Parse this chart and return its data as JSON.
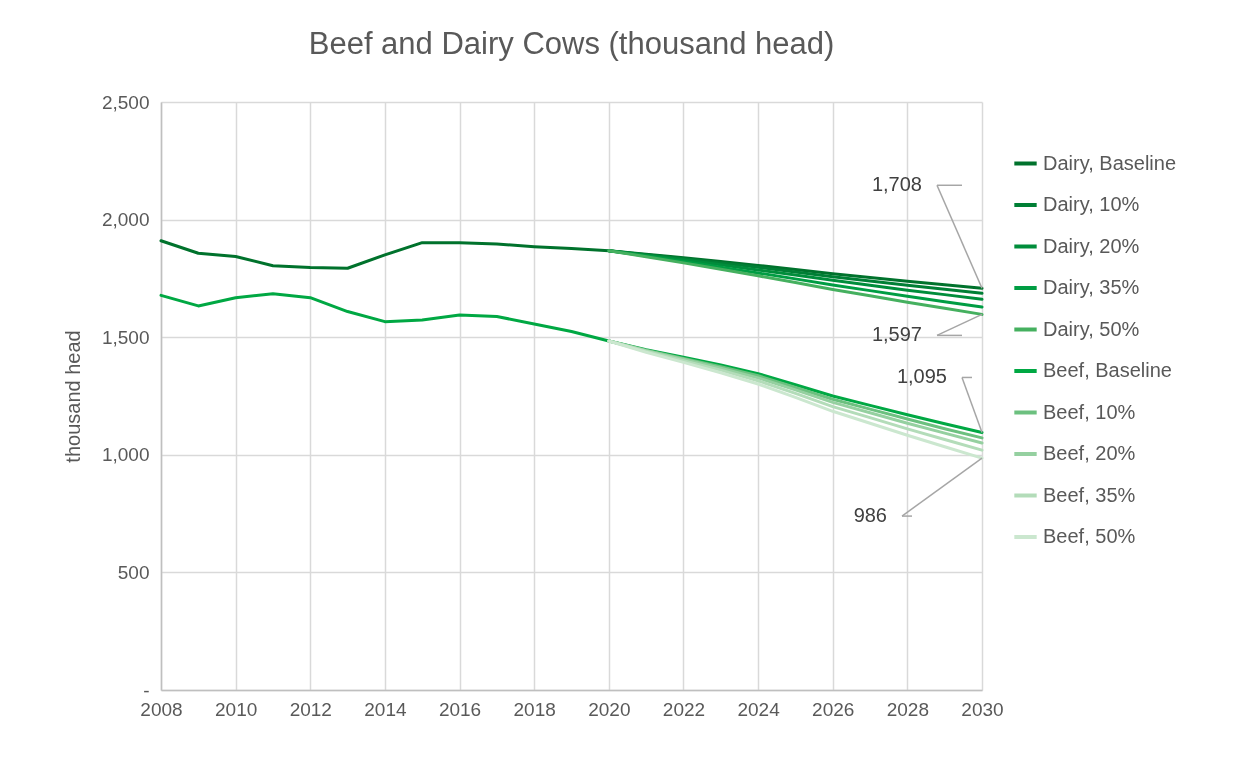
{
  "chart_data": {
    "type": "line",
    "title": "Beef and Dairy Cows (thousand head)",
    "ylabel": "thousand head",
    "x": [
      2008,
      2009,
      2010,
      2011,
      2012,
      2013,
      2014,
      2015,
      2016,
      2017,
      2018,
      2019,
      2020,
      2021,
      2022,
      2023,
      2024,
      2025,
      2026,
      2027,
      2028,
      2029,
      2030
    ],
    "xlim": [
      2008,
      2030
    ],
    "xticks": [
      2008,
      2010,
      2012,
      2014,
      2016,
      2018,
      2020,
      2022,
      2024,
      2026,
      2028,
      2030
    ],
    "ylim": [
      0,
      2500
    ],
    "yticks": [
      {
        "value": 0,
        "label": "-"
      },
      500,
      {
        "value": 1000,
        "label": "1,000"
      },
      {
        "value": 1500,
        "label": "1,500"
      },
      {
        "value": 2000,
        "label": "2,000"
      },
      {
        "value": 2500,
        "label": "2,500"
      }
    ],
    "grid": true,
    "legend": "right",
    "line_style": "solid",
    "series": [
      {
        "name": "Dairy, Baseline",
        "color": "#00722c",
        "values": [
          1910,
          1857,
          1843,
          1804,
          1796,
          1793,
          1850,
          1902,
          1902,
          1896,
          1885,
          1877,
          1868,
          1853,
          1838,
          1822,
          1805,
          1788,
          1770,
          1754,
          1738,
          1723,
          1708
        ],
        "value_labels": [
          null,
          null,
          null,
          null,
          null,
          null,
          null,
          null,
          null,
          null,
          null,
          null,
          null,
          null,
          null,
          null,
          null,
          null,
          null,
          null,
          null,
          null,
          "1,708"
        ]
      },
      {
        "name": "Dairy, 10%",
        "color": "#007f35",
        "values": [
          null,
          null,
          null,
          null,
          null,
          null,
          null,
          null,
          null,
          null,
          null,
          null,
          1868,
          1851,
          1834,
          1816,
          1797,
          1777,
          1757,
          1739,
          1721,
          1704,
          1687
        ]
      },
      {
        "name": "Dairy, 20%",
        "color": "#008d3b",
        "values": [
          null,
          null,
          null,
          null,
          null,
          null,
          null,
          null,
          null,
          null,
          null,
          null,
          1868,
          1848,
          1829,
          1808,
          1786,
          1764,
          1742,
          1721,
          1700,
          1681,
          1661
        ]
      },
      {
        "name": "Dairy, 35%",
        "color": "#009d43",
        "values": [
          null,
          null,
          null,
          null,
          null,
          null,
          null,
          null,
          null,
          null,
          null,
          null,
          1868,
          1845,
          1822,
          1798,
          1773,
          1748,
          1722,
          1698,
          1674,
          1651,
          1628
        ]
      },
      {
        "name": "Dairy, 50%",
        "color": "#45b05f",
        "values": [
          null,
          null,
          null,
          null,
          null,
          null,
          null,
          null,
          null,
          null,
          null,
          null,
          1868,
          1842,
          1816,
          1789,
          1761,
          1733,
          1703,
          1676,
          1649,
          1623,
          1597
        ],
        "value_labels": [
          null,
          null,
          null,
          null,
          null,
          null,
          null,
          null,
          null,
          null,
          null,
          null,
          null,
          null,
          null,
          null,
          null,
          null,
          null,
          null,
          null,
          null,
          "1,597"
        ]
      },
      {
        "name": "Beef, Baseline",
        "color": "#00a843",
        "values": [
          1678,
          1633,
          1668,
          1685,
          1668,
          1609,
          1566,
          1573,
          1594,
          1588,
          1556,
          1524,
          1484,
          1447,
          1415,
          1382,
          1345,
          1298,
          1250,
          1210,
          1170,
          1132,
          1095
        ],
        "value_labels": [
          null,
          null,
          null,
          null,
          null,
          null,
          null,
          null,
          null,
          null,
          null,
          null,
          null,
          null,
          null,
          null,
          null,
          null,
          null,
          null,
          null,
          null,
          "1,095"
        ]
      },
      {
        "name": "Beef, 10%",
        "color": "#6cc07f",
        "values": [
          null,
          null,
          null,
          null,
          null,
          null,
          null,
          null,
          null,
          null,
          null,
          null,
          1484,
          1445,
          1410,
          1375,
          1336,
          1286,
          1236,
          1194,
          1152,
          1111,
          1072
        ]
      },
      {
        "name": "Beef, 20%",
        "color": "#95d0a0",
        "values": [
          null,
          null,
          null,
          null,
          null,
          null,
          null,
          null,
          null,
          null,
          null,
          null,
          1484,
          1443,
          1406,
          1368,
          1327,
          1276,
          1223,
          1179,
          1134,
          1092,
          1050
        ]
      },
      {
        "name": "Beef, 35%",
        "color": "#b3dcb9",
        "values": [
          null,
          null,
          null,
          null,
          null,
          null,
          null,
          null,
          null,
          null,
          null,
          null,
          1484,
          1440,
          1400,
          1360,
          1315,
          1261,
          1205,
          1158,
          1110,
          1065,
          1020
        ]
      },
      {
        "name": "Beef, 50%",
        "color": "#cbe7cf",
        "values": [
          null,
          null,
          null,
          null,
          null,
          null,
          null,
          null,
          null,
          null,
          null,
          null,
          1484,
          1436,
          1393,
          1349,
          1301,
          1244,
          1185,
          1134,
          1083,
          1034,
          986
        ],
        "value_labels": [
          null,
          null,
          null,
          null,
          null,
          null,
          null,
          null,
          null,
          null,
          null,
          null,
          null,
          null,
          null,
          null,
          null,
          null,
          null,
          null,
          null,
          null,
          "986"
        ]
      }
    ]
  }
}
